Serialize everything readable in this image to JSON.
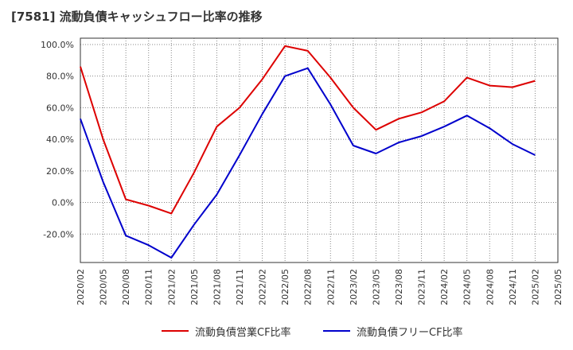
{
  "chart_data": {
    "type": "line",
    "title": "[7581]  流動負債キャッシュフロー比率の推移",
    "x": [
      "2020/02",
      "2020/05",
      "2020/08",
      "2020/11",
      "2021/02",
      "2021/05",
      "2021/08",
      "2021/11",
      "2022/02",
      "2022/05",
      "2022/08",
      "2022/11",
      "2023/02",
      "2023/05",
      "2023/08",
      "2023/11",
      "2024/02",
      "2024/05",
      "2024/08",
      "2024/11",
      "2025/02"
    ],
    "xticks": [
      "2020/02",
      "2020/05",
      "2020/08",
      "2020/11",
      "2021/02",
      "2021/05",
      "2021/08",
      "2021/11",
      "2022/02",
      "2022/05",
      "2022/08",
      "2022/11",
      "2023/02",
      "2023/05",
      "2023/08",
      "2023/11",
      "2024/02",
      "2024/05",
      "2024/08",
      "2024/11",
      "2025/02",
      "2025/05"
    ],
    "yticks": [
      100,
      80,
      60,
      40,
      20,
      0,
      -20
    ],
    "ytick_labels": [
      "100.0%",
      "80.0%",
      "60.0%",
      "40.0%",
      "20.0%",
      "0.0%",
      "-20.0%"
    ],
    "ylim": [
      -38,
      104
    ],
    "grid": true,
    "legend_position": "bottom",
    "series": [
      {
        "name": "流動負債営業CF比率",
        "color": "#dd0000",
        "values": [
          86,
          40,
          2,
          -2,
          -7,
          19,
          48,
          60,
          78,
          99,
          96,
          79,
          60,
          46,
          53,
          57,
          64,
          79,
          74,
          73,
          77
        ]
      },
      {
        "name": "流動負債フリーCF比率",
        "color": "#0000cc",
        "values": [
          53,
          13,
          -21,
          -27,
          -35,
          -14,
          5,
          30,
          56,
          80,
          85,
          62,
          36,
          31,
          38,
          42,
          48,
          55,
          47,
          37,
          30
        ]
      }
    ]
  }
}
